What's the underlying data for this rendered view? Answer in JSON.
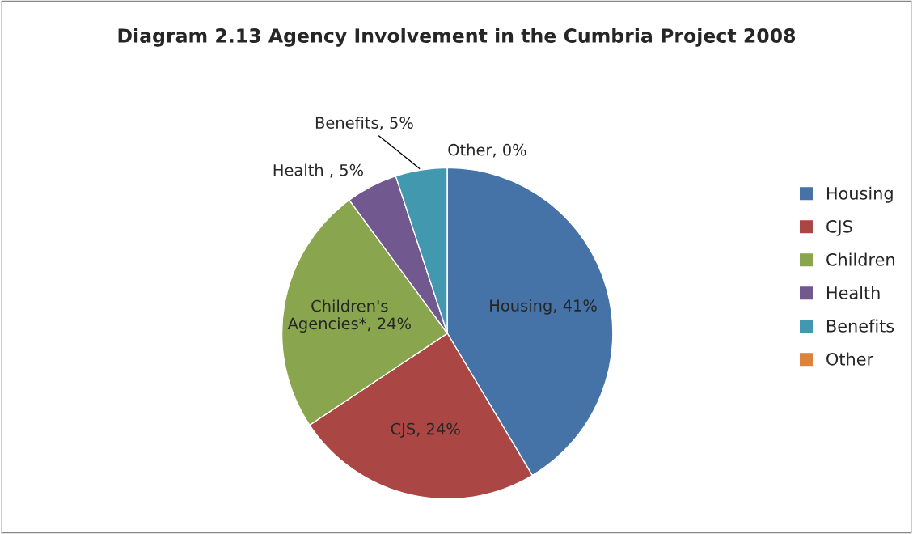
{
  "chart_data": {
    "type": "pie",
    "title": "Diagram 2.13 Agency Involvement in the Cumbria Project 2008",
    "categories": [
      "Housing",
      "CJS",
      "Children",
      "Health",
      "Benefits",
      "Other"
    ],
    "values": [
      41,
      24,
      24,
      5,
      5,
      0
    ],
    "colors": [
      "#4572a7",
      "#aa4643",
      "#89a54e",
      "#71588f",
      "#4198af",
      "#db843d"
    ],
    "value_labels": [
      "Housing, 41%",
      "CJS, 24%",
      "Children's\nAgencies*, 24%",
      "Health , 5%",
      "Benefits, 5%",
      "Other, 0%"
    ],
    "legend": "right"
  }
}
